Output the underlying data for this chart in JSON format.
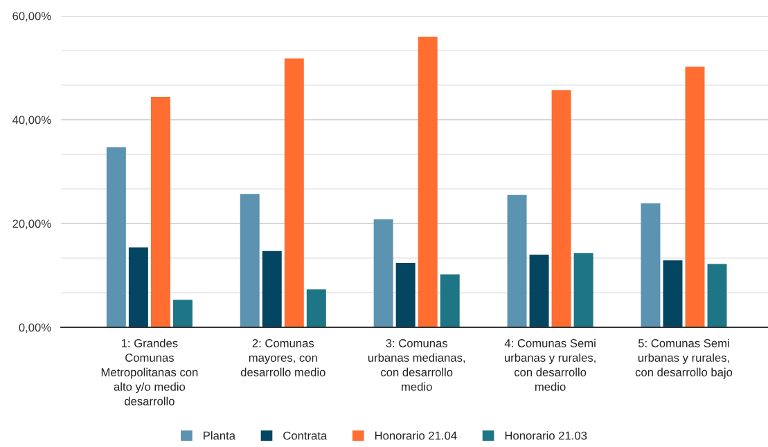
{
  "chart_data": {
    "type": "bar",
    "categories": [
      "1: Grandes\nComunas\nMetropolitanas con\nalto y/o medio\ndesarrollo",
      "2: Comunas\nmayores, con\ndesarrollo medio",
      "3: Comunas\nurbanas medianas,\ncon desarrollo\nmedio",
      "4: Comunas Semi\nurbanas y rurales,\ncon desarrollo\nmedio",
      "5: Comunas Semi\nurbanas y rurales,\ncon desarrollo bajo"
    ],
    "series": [
      {
        "name": "Planta",
        "color": "#5b93b0",
        "values": [
          34.7,
          25.7,
          20.8,
          25.5,
          23.9
        ]
      },
      {
        "name": "Contrata",
        "color": "#044662",
        "values": [
          15.4,
          14.7,
          12.4,
          14.0,
          12.9
        ]
      },
      {
        "name": "Honorario 21.04",
        "color": "#ff6d31",
        "values": [
          44.4,
          51.8,
          56.0,
          45.7,
          50.2
        ]
      },
      {
        "name": "Honorario 21.03",
        "color": "#1e7585",
        "values": [
          5.3,
          7.3,
          10.2,
          14.3,
          12.2
        ]
      }
    ],
    "ylim": [
      0,
      60
    ],
    "yticks": [
      {
        "value": 0,
        "label": "0,00%"
      },
      {
        "value": 6.67,
        "label": null
      },
      {
        "value": 13.33,
        "label": null
      },
      {
        "value": 20,
        "label": "20,00%"
      },
      {
        "value": 26.67,
        "label": null
      },
      {
        "value": 33.33,
        "label": null
      },
      {
        "value": 40,
        "label": "40,00%"
      },
      {
        "value": 46.67,
        "label": null
      },
      {
        "value": 53.33,
        "label": null
      },
      {
        "value": 60,
        "label": "60,00%"
      }
    ],
    "grid": "y",
    "legend": "bottom"
  }
}
